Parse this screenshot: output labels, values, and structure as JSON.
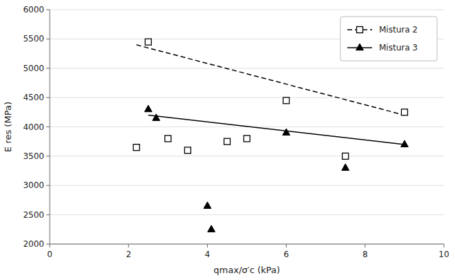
{
  "chart_data": {
    "type": "scatter",
    "xlabel": "qmax/σ′c (kPa)",
    "ylabel": "E res (MPa)",
    "xlim": [
      0,
      10
    ],
    "ylim": [
      2000,
      6000
    ],
    "xticks": [
      0,
      2,
      4,
      6,
      8,
      10
    ],
    "yticks": [
      2000,
      2500,
      3000,
      3500,
      4000,
      4500,
      5000,
      5500,
      6000
    ],
    "grid": "y",
    "legend": "upper-right",
    "series": [
      {
        "name": "Mistura 2",
        "color": "#000000",
        "marker": "open-square",
        "line_style": "dashed",
        "x": [
          2.2,
          2.5,
          3.0,
          3.5,
          4.5,
          5.0,
          6.0,
          7.5,
          9.0
        ],
        "values": [
          3650,
          5450,
          3800,
          3600,
          3750,
          3800,
          4450,
          3500,
          4250
        ],
        "line_x": [
          2.2,
          9.0
        ],
        "line_values": [
          5400,
          4200
        ]
      },
      {
        "name": "Mistura 3",
        "color": "#000000",
        "marker": "triangle",
        "line_style": "solid",
        "x": [
          2.5,
          2.7,
          4.0,
          4.1,
          6.0,
          7.5,
          9.0
        ],
        "values": [
          4300,
          4150,
          2650,
          2250,
          3900,
          3300,
          3700
        ],
        "line_x": [
          2.5,
          9.0
        ],
        "line_values": [
          4200,
          3700
        ]
      }
    ]
  }
}
